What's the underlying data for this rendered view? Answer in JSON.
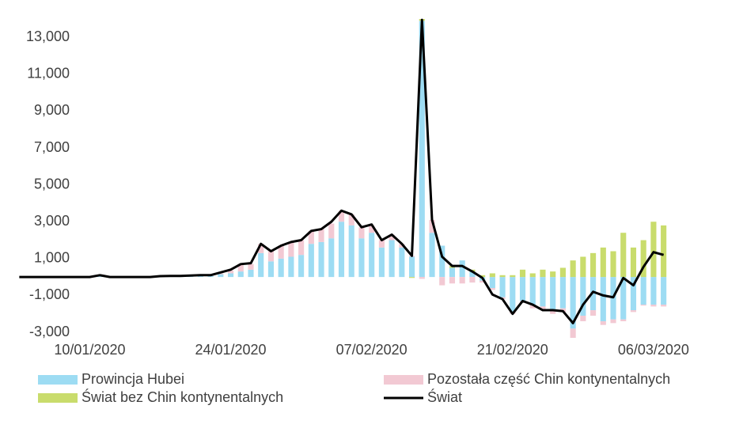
{
  "chart_data": {
    "type": "bar",
    "stacked": true,
    "categories": [
      null,
      null,
      null,
      null,
      null,
      null,
      null,
      "10/01/2020",
      null,
      null,
      null,
      null,
      null,
      null,
      null,
      null,
      null,
      null,
      null,
      null,
      null,
      "24/01/2020",
      null,
      null,
      null,
      null,
      null,
      null,
      null,
      null,
      null,
      null,
      null,
      null,
      null,
      "07/02/2020",
      null,
      null,
      null,
      null,
      null,
      null,
      null,
      null,
      null,
      null,
      null,
      null,
      null,
      "21/02/2020",
      null,
      null,
      null,
      null,
      null,
      null,
      null,
      null,
      null,
      null,
      null,
      null,
      null,
      "06/03/2020",
      null
    ],
    "ylim": [
      -3000,
      14000
    ],
    "yticks": [
      {
        "value": -3000,
        "label": "-3,000"
      },
      {
        "value": -1000,
        "label": "-1,000"
      },
      {
        "value": 1000,
        "label": "1,000"
      },
      {
        "value": 3000,
        "label": "3,000"
      },
      {
        "value": 5000,
        "label": "5,000"
      },
      {
        "value": 7000,
        "label": "7,000"
      },
      {
        "value": 9000,
        "label": "9,000"
      },
      {
        "value": 11000,
        "label": "11,000"
      },
      {
        "value": 13000,
        "label": "13,000"
      }
    ],
    "legend": "bottom",
    "series": [
      {
        "name": "Prowincja Hubei",
        "type": "bar",
        "color": "#9ddcf3",
        "values": [
          0,
          0,
          0,
          0,
          0,
          0,
          0,
          0,
          50,
          0,
          0,
          0,
          0,
          0,
          30,
          40,
          40,
          40,
          60,
          60,
          150,
          200,
          300,
          400,
          1300,
          850,
          1000,
          1100,
          1200,
          1800,
          1900,
          2100,
          3000,
          2800,
          2100,
          2400,
          1600,
          2000,
          1600,
          1100,
          13900,
          2400,
          1700,
          500,
          900,
          300,
          -200,
          -600,
          -1100,
          -1900,
          -1300,
          -1500,
          -1600,
          -1800,
          -1700,
          -2800,
          -2100,
          -1800,
          -2400,
          -2300,
          -2300,
          -1800,
          -1500,
          -1500,
          -1500
        ]
      },
      {
        "name": "Pozostała część Chin kontynentalnych",
        "type": "bar",
        "color": "#f2c9d3",
        "values": [
          0,
          0,
          0,
          0,
          0,
          0,
          0,
          0,
          50,
          0,
          0,
          0,
          0,
          0,
          20,
          20,
          20,
          40,
          40,
          40,
          50,
          150,
          400,
          300,
          500,
          550,
          700,
          800,
          800,
          700,
          700,
          800,
          600,
          600,
          600,
          400,
          400,
          300,
          200,
          50,
          -100,
          700,
          -450,
          -350,
          -350,
          -300,
          -100,
          -100,
          -100,
          -100,
          -100,
          -200,
          -200,
          -200,
          -200,
          -500,
          -300,
          -300,
          -200,
          -200,
          -100,
          -100,
          -50,
          -100,
          -100
        ]
      },
      {
        "name": "Świat bez Chin kontynentalnych",
        "type": "bar",
        "color": "#c9dc6c",
        "values": [
          0,
          0,
          0,
          0,
          0,
          0,
          0,
          0,
          0,
          0,
          0,
          0,
          0,
          0,
          0,
          0,
          0,
          0,
          0,
          0,
          0,
          0,
          0,
          0,
          0,
          0,
          0,
          0,
          0,
          0,
          0,
          0,
          0,
          0,
          0,
          0,
          0,
          0,
          0,
          -50,
          100,
          0,
          0,
          100,
          0,
          100,
          100,
          200,
          100,
          100,
          400,
          200,
          400,
          300,
          500,
          900,
          1100,
          1300,
          1600,
          1400,
          2400,
          1600,
          2000,
          3000,
          2800
        ]
      },
      {
        "name": "Świat",
        "type": "line",
        "color": "#000000",
        "values": [
          0,
          0,
          0,
          0,
          0,
          0,
          0,
          0,
          100,
          0,
          0,
          0,
          0,
          0,
          50,
          60,
          60,
          80,
          100,
          100,
          250,
          400,
          700,
          750,
          1800,
          1400,
          1700,
          1900,
          2000,
          2500,
          2600,
          3000,
          3600,
          3400,
          2700,
          2850,
          2000,
          2300,
          1800,
          1150,
          13950,
          3100,
          1100,
          600,
          600,
          300,
          -50,
          -950,
          -1200,
          -2000,
          -1300,
          -1500,
          -1800,
          -1800,
          -1850,
          -2500,
          -1500,
          -800,
          -1000,
          -1100,
          -50,
          -450,
          550,
          1350,
          1200
        ]
      }
    ]
  }
}
